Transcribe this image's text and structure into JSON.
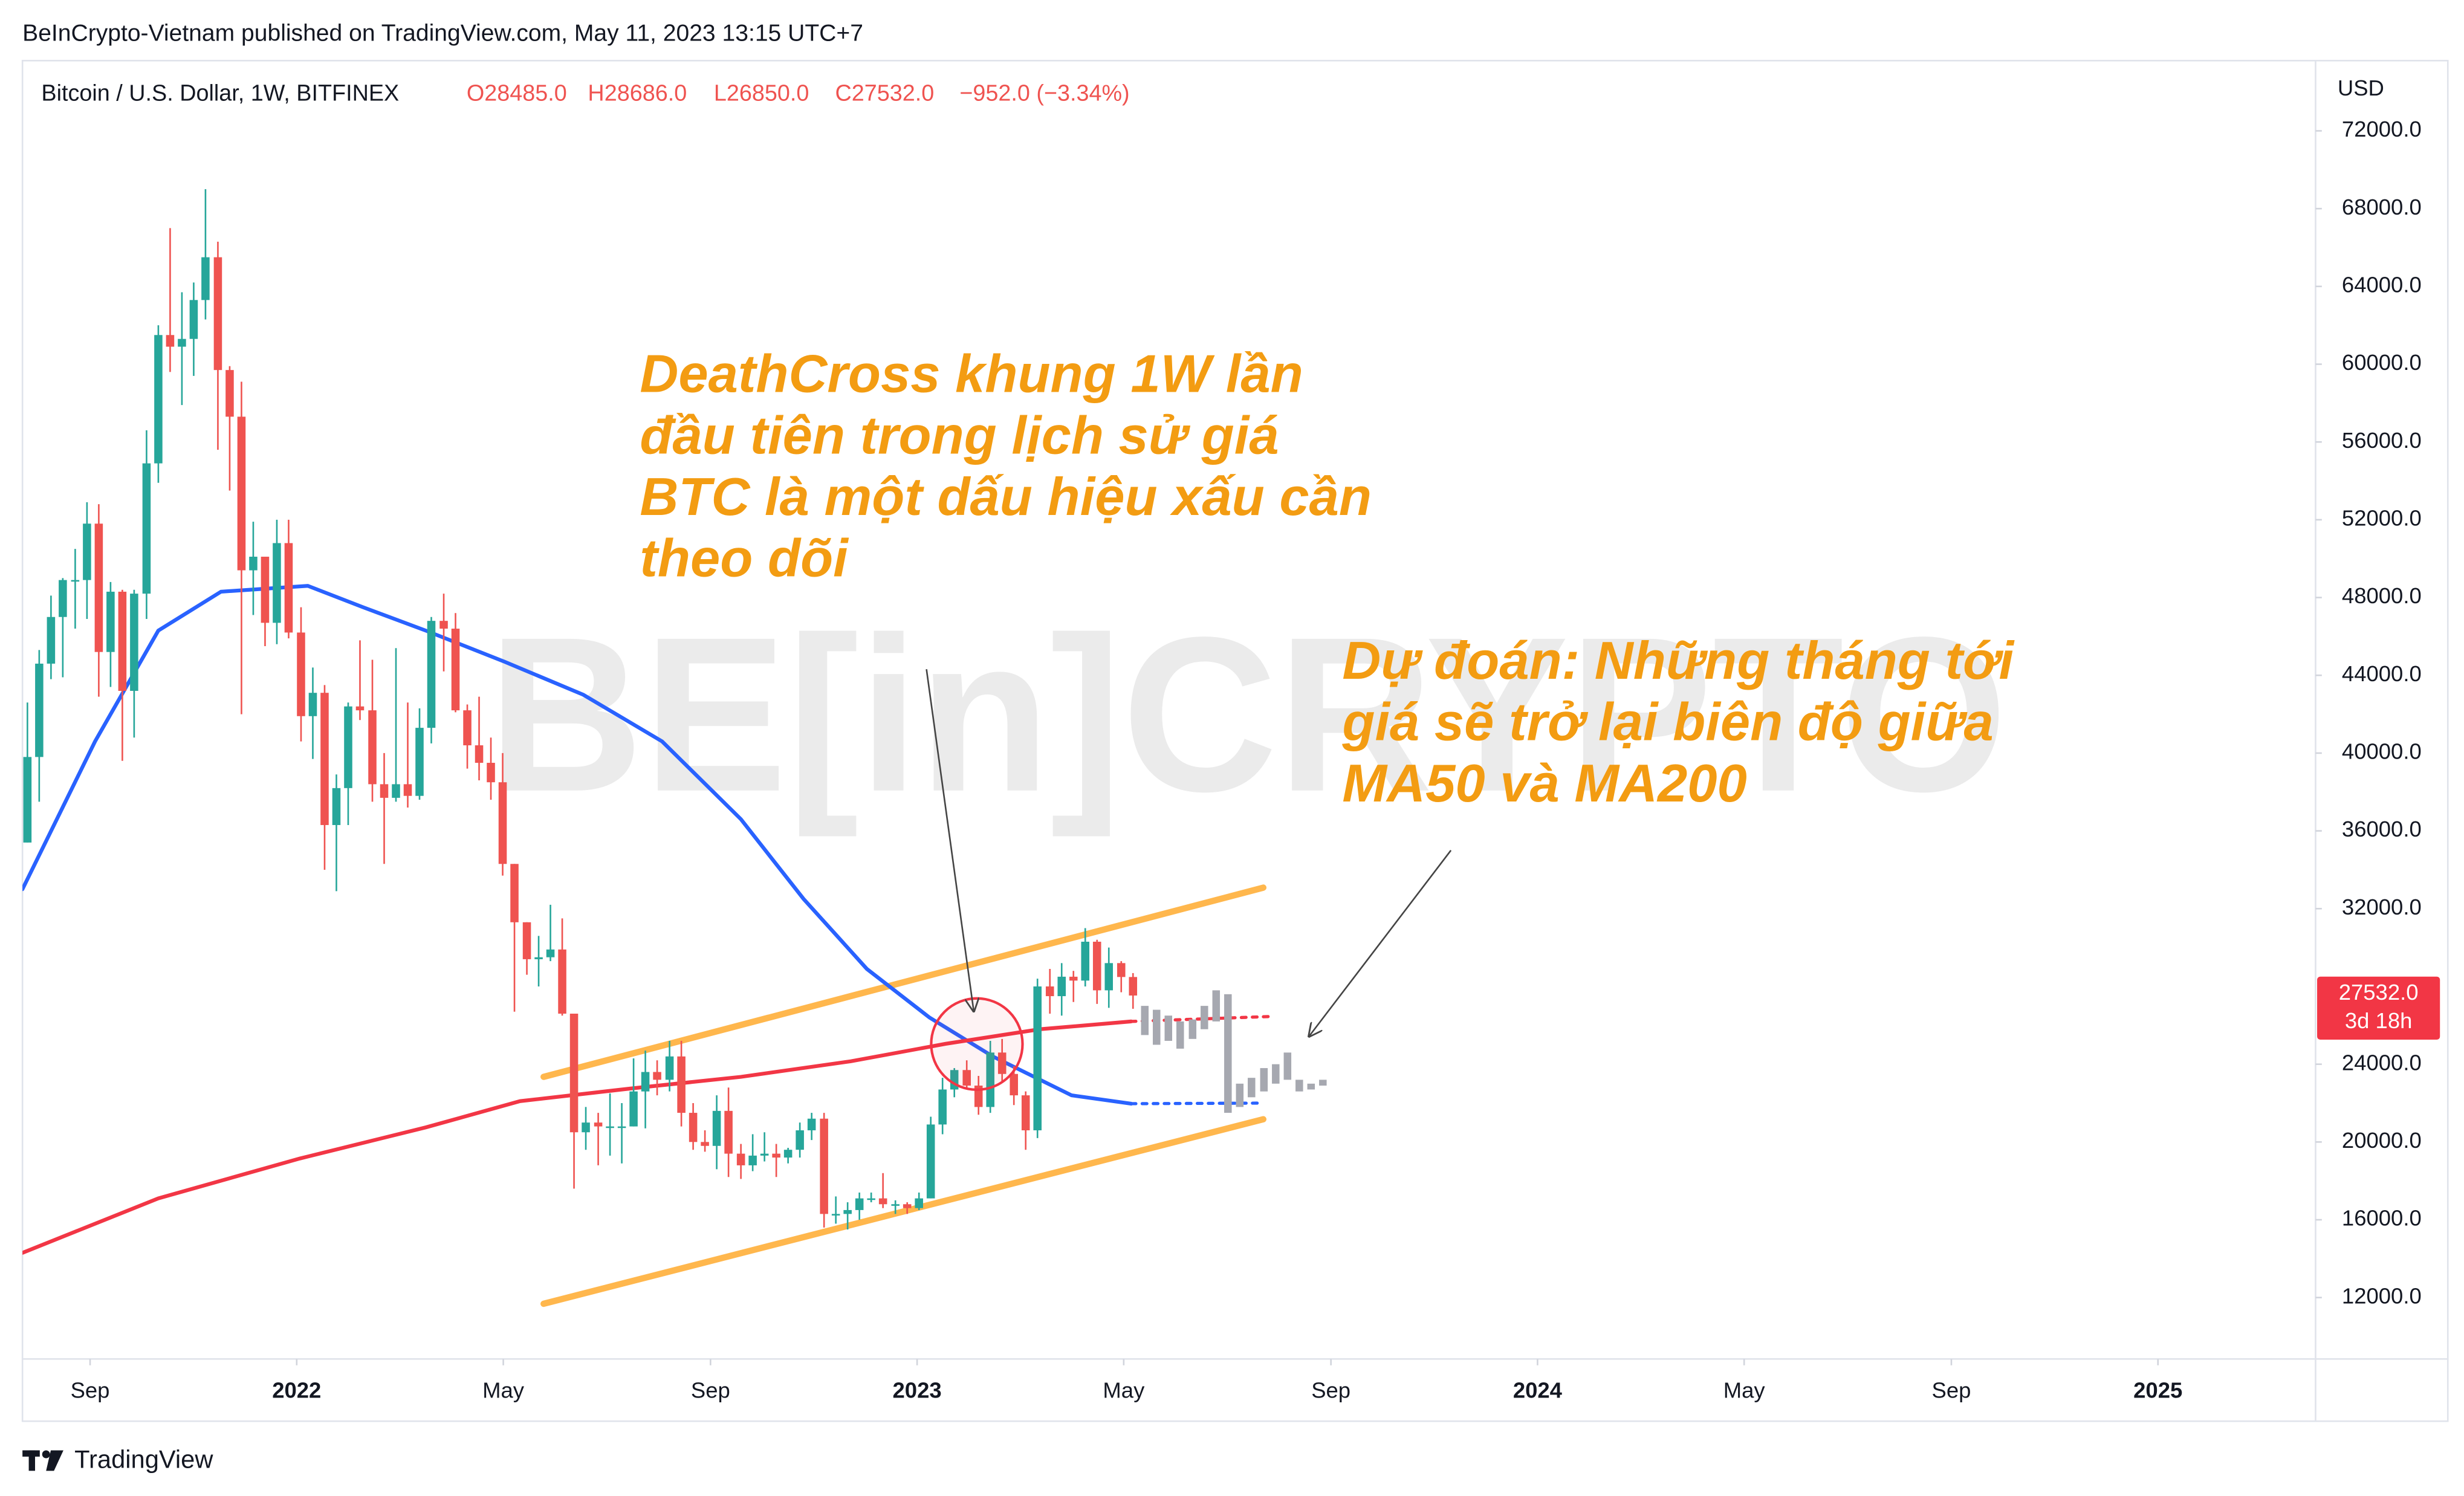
{
  "header": "BeInCrypto-Vietnam published on TradingView.com, May 11, 2023 13:15 UTC+7",
  "footer": "TradingView",
  "chart_data": {
    "type": "candlestick",
    "title": "Bitcoin / U.S. Dollar, 1W, BITFINEX",
    "ohlc_labels": [
      "O28485.0",
      "H28686.0",
      "L26850.0",
      "C27532.0",
      "−952.0 (−3.34%)"
    ],
    "currency": "USD",
    "price_label": "27532.0",
    "countdown": "3d 18h",
    "watermark": "BE[in]CRYPTO",
    "annotations": [
      {
        "lines": [
          "DeathCross khung 1W lần",
          "đầu tiên trong lịch sử giá",
          "BTC là một dấu hiệu xấu cần",
          "theo dõi"
        ]
      },
      {
        "lines": [
          "Dự đoán: Những tháng tới",
          "giá sẽ trở lại biên độ giữa",
          "MA50 và MA200"
        ]
      }
    ],
    "xlim": [
      2021.558,
      2025.254
    ],
    "ylim": [
      8840,
      75490
    ],
    "grid": false,
    "xticks": [
      {
        "value": 2021.667,
        "label": "Sep"
      },
      2022,
      {
        "value": 2022.333,
        "label": "May"
      },
      {
        "value": 2022.667,
        "label": "Sep"
      },
      2023,
      {
        "value": 2023.333,
        "label": "May"
      },
      {
        "value": 2023.667,
        "label": "Sep"
      },
      2024,
      {
        "value": 2024.333,
        "label": "May"
      },
      {
        "value": 2024.667,
        "label": "Sep"
      },
      2025
    ],
    "yticks": [
      {
        "value": 12000,
        "label": "12000.0"
      },
      {
        "value": 16000,
        "label": "16000.0"
      },
      {
        "value": 20000,
        "label": "20000.0"
      },
      {
        "value": 24000,
        "label": "24000.0"
      },
      {
        "value": 32000,
        "label": "32000.0"
      },
      {
        "value": 36000,
        "label": "36000.0"
      },
      {
        "value": 40000,
        "label": "40000.0"
      },
      {
        "value": 44000,
        "label": "44000.0"
      },
      {
        "value": 48000,
        "label": "48000.0"
      },
      {
        "value": 52000,
        "label": "52000.0"
      },
      {
        "value": 56000,
        "label": "56000.0"
      },
      {
        "value": 60000,
        "label": "60000.0"
      },
      {
        "value": 64000,
        "label": "64000.0"
      },
      {
        "value": 68000,
        "label": "68000.0"
      },
      {
        "value": 72000,
        "label": "72000.0"
      }
    ],
    "up_color": "#26a69a",
    "down_color": "#ef5350",
    "candles": {
      "x": [
        2021.566,
        2021.585,
        2021.604,
        2021.623,
        2021.643,
        2021.662,
        2021.681,
        2021.7,
        2021.719,
        2021.738,
        2021.758,
        2021.777,
        2021.796,
        2021.815,
        2021.834,
        2021.853,
        2021.873,
        2021.892,
        2021.911,
        2021.93,
        2021.949,
        2021.968,
        2021.987,
        2022.007,
        2022.026,
        2022.045,
        2022.064,
        2022.083,
        2022.102,
        2022.122,
        2022.141,
        2022.16,
        2022.179,
        2022.198,
        2022.217,
        2022.237,
        2022.256,
        2022.275,
        2022.294,
        2022.313,
        2022.332,
        2022.351,
        2022.371,
        2022.39,
        2022.409,
        2022.428,
        2022.447,
        2022.466,
        2022.486,
        2022.505,
        2022.524,
        2022.543,
        2022.562,
        2022.581,
        2022.601,
        2022.62,
        2022.639,
        2022.658,
        2022.677,
        2022.696,
        2022.716,
        2022.735,
        2022.754,
        2022.773,
        2022.792,
        2022.811,
        2022.83,
        2022.85,
        2022.869,
        2022.888,
        2022.907,
        2022.926,
        2022.945,
        2022.965,
        2022.984,
        2023.003,
        2023.022,
        2023.041,
        2023.06,
        2023.08,
        2023.099,
        2023.118,
        2023.137,
        2023.156,
        2023.175,
        2023.194,
        2023.214,
        2023.233,
        2023.252,
        2023.271,
        2023.29,
        2023.309,
        2023.329,
        2023.348
      ],
      "open": [
        35400,
        39800,
        44600,
        47000,
        48900,
        48900,
        51800,
        45200,
        48300,
        43200,
        48200,
        54900,
        61500,
        60900,
        61300,
        63300,
        65500,
        59700,
        57300,
        49400,
        50100,
        46700,
        50800,
        46200,
        41900,
        43100,
        36300,
        38200,
        42400,
        42200,
        38400,
        37700,
        38400,
        37800,
        41300,
        46800,
        46400,
        42200,
        40400,
        39500,
        38500,
        34300,
        31300,
        29400,
        29500,
        29900,
        26600,
        20500,
        21000,
        20800,
        20800,
        20800,
        22600,
        23600,
        23200,
        24400,
        21500,
        20000,
        19800,
        21600,
        19400,
        18800,
        19300,
        19400,
        19200,
        19600,
        20600,
        21200,
        16300,
        16300,
        16500,
        17100,
        17100,
        16800,
        16800,
        16600,
        17100,
        20900,
        22700,
        23700,
        22900,
        21800,
        24600,
        23500,
        22400,
        20600,
        28000,
        27500,
        28500,
        28300,
        30300,
        27800,
        29200,
        28485
      ],
      "high": [
        42600,
        45300,
        48100,
        49000,
        50500,
        52900,
        52800,
        48800,
        48400,
        48400,
        56600,
        62000,
        67000,
        63700,
        64200,
        69000,
        66300,
        59900,
        59100,
        51900,
        50100,
        52000,
        52000,
        47500,
        44400,
        43500,
        38900,
        42600,
        45800,
        44800,
        40000,
        45400,
        42600,
        42300,
        47000,
        48200,
        47200,
        42500,
        42900,
        40800,
        40000,
        34300,
        31300,
        30600,
        32200,
        31500,
        26600,
        21800,
        21500,
        22500,
        22000,
        24300,
        24700,
        24200,
        25200,
        25200,
        22000,
        20600,
        22400,
        22800,
        19900,
        20400,
        20500,
        19900,
        19700,
        21000,
        21500,
        21500,
        17200,
        16900,
        17400,
        17400,
        18400,
        17000,
        16900,
        17400,
        21300,
        23300,
        23800,
        24200,
        23400,
        25200,
        25300,
        23900,
        22600,
        28400,
        28900,
        29200,
        28800,
        31000,
        30400,
        30000,
        29300,
        28686
      ],
      "low": [
        35400,
        37500,
        43800,
        43900,
        46400,
        46900,
        42900,
        43400,
        39600,
        40800,
        46900,
        53900,
        59600,
        57900,
        59400,
        62300,
        55600,
        53500,
        42000,
        47100,
        45500,
        45600,
        45900,
        40600,
        39700,
        34000,
        32900,
        36300,
        41700,
        37500,
        34300,
        37500,
        37200,
        37600,
        40500,
        44200,
        42100,
        39200,
        38600,
        37600,
        33700,
        26700,
        28600,
        28000,
        29300,
        26500,
        17600,
        19600,
        18800,
        19300,
        18900,
        20800,
        20700,
        22400,
        22600,
        20800,
        19600,
        19500,
        18600,
        18200,
        18100,
        18500,
        19000,
        18200,
        18900,
        19200,
        20100,
        15600,
        15800,
        15500,
        16000,
        16900,
        16600,
        16300,
        16300,
        16500,
        17100,
        20400,
        22300,
        22700,
        21400,
        21500,
        23100,
        21900,
        19600,
        20200,
        26600,
        26500,
        27200,
        28000,
        27100,
        26900,
        27700,
        26850
      ],
      "close": [
        39800,
        44600,
        47000,
        48900,
        48900,
        51800,
        45200,
        48300,
        43200,
        48200,
        54900,
        61500,
        60900,
        61300,
        63300,
        65500,
        59700,
        57300,
        49400,
        50100,
        46700,
        50800,
        46200,
        41900,
        43100,
        36300,
        38200,
        42400,
        42200,
        38400,
        37700,
        38400,
        37800,
        41300,
        46800,
        46400,
        42200,
        40400,
        39500,
        38500,
        34300,
        31300,
        29400,
        29500,
        29900,
        26600,
        20500,
        21000,
        20800,
        20800,
        20800,
        22600,
        23600,
        23200,
        24400,
        21500,
        20000,
        19800,
        21600,
        19400,
        18800,
        19300,
        19400,
        19200,
        19600,
        20600,
        21200,
        16300,
        16300,
        16500,
        17100,
        17100,
        16800,
        16800,
        16600,
        17100,
        20900,
        22700,
        23700,
        22900,
        21800,
        24600,
        23500,
        22400,
        20600,
        28000,
        27500,
        28500,
        28300,
        30300,
        27800,
        29200,
        28485,
        27532
      ]
    },
    "forecast": {
      "color": "#a6a8b0",
      "x": [
        2023.367,
        2023.386,
        2023.405,
        2023.424,
        2023.444,
        2023.463,
        2023.482,
        2023.501,
        2023.52,
        2023.539,
        2023.559,
        2023.578,
        2023.597,
        2023.616,
        2023.635,
        2023.654
      ],
      "open": [
        27000,
        26800,
        26500,
        26200,
        26300,
        27000,
        27800,
        27600,
        23000,
        23300,
        23800,
        24000,
        24600,
        23200,
        23000,
        23200
      ],
      "close": [
        25500,
        25000,
        25200,
        24800,
        25300,
        25800,
        26200,
        21500,
        21800,
        22300,
        22600,
        23000,
        23200,
        22600,
        22700,
        22900
      ]
    },
    "ma_lines": [
      {
        "color": "#2962ff",
        "dashed": false,
        "x": [
          2021.558,
          2021.675,
          2021.777,
          2021.878,
          2022.018,
          2022.107,
          2022.208,
          2022.335,
          2022.462,
          2022.589,
          2022.716,
          2022.817,
          2022.919,
          2023.02,
          2023.122,
          2023.249,
          2023.345
        ],
        "values": [
          33000,
          40600,
          46300,
          48300,
          48600,
          47500,
          46300,
          44700,
          43000,
          40600,
          36600,
          32500,
          28900,
          26400,
          24400,
          22400,
          21970
        ]
      },
      {
        "color": "#2962ff",
        "dashed": true,
        "x": [
          2023.345,
          2023.553
        ],
        "values": [
          21970,
          22000
        ]
      },
      {
        "color": "#f23645",
        "dashed": false,
        "x": [
          2021.558,
          2021.777,
          2022.005,
          2022.208,
          2022.36,
          2022.538,
          2022.716,
          2022.893,
          2023.046,
          2023.198,
          2023.345
        ],
        "values": [
          14300,
          17100,
          19150,
          20750,
          22100,
          22750,
          23350,
          24150,
          25050,
          25800,
          26200
        ]
      },
      {
        "color": "#f23645",
        "dashed": true,
        "x": [
          2023.345,
          2023.566
        ],
        "values": [
          26200,
          26450
        ]
      }
    ],
    "channel_lines": [
      {
        "color": "#ffb74d",
        "x": [
          2022.398,
          2023.558
        ],
        "values": [
          23350,
          33080
        ]
      },
      {
        "color": "#ffb74d",
        "x": [
          2022.398,
          2023.558
        ],
        "values": [
          11680,
          21170
        ]
      }
    ]
  }
}
